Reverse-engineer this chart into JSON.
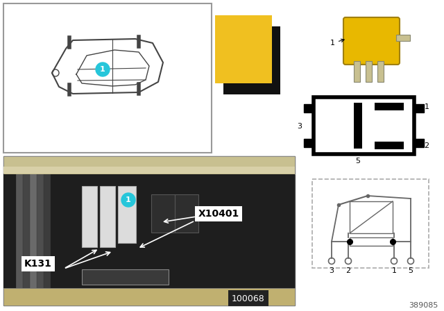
{
  "bg_color": "white",
  "car_line_color": "#444444",
  "yellow_swatch": "#f0c020",
  "black_swatch": "#111111",
  "teal_bubble": "#26c6da",
  "relay_yellow": "#e8b800",
  "relay_pin_metal": "#c8c890",
  "photo_bg": "#282828",
  "photo_light_bar": "#c8c090",
  "schematic_line": "#666666",
  "schematic_dash_border": "#aaaaaa",
  "doc_number": "389085",
  "photo_number": "100068",
  "callout_k131": "K131",
  "callout_x10401": "X10401"
}
